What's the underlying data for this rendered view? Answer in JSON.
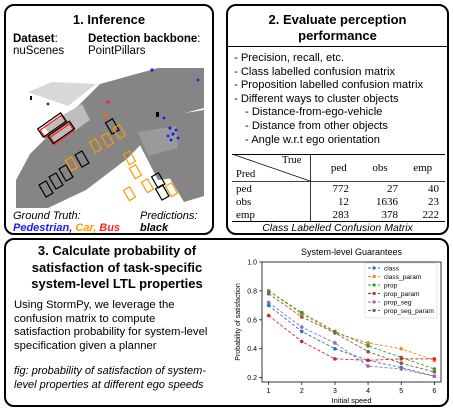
{
  "panel1": {
    "title": "1. Inference",
    "dataset_label": "Dataset",
    "dataset_colon": ":",
    "dataset_value": "nuScenes",
    "backbone_label": "Detection backbone",
    "backbone_colon": ":",
    "backbone_value": "PointPillars",
    "gt_label": "Ground Truth:",
    "gt_pedestrian": "Pedestrian",
    "gt_comma1": ", ",
    "gt_car": "Car",
    "gt_comma2": ", ",
    "gt_bus": "Bus",
    "pred_label": "Predictions:",
    "pred_value": "black",
    "colors": {
      "pedestrian": "#1a1aff",
      "car": "#ff9900",
      "bus": "#ff2222",
      "road": "#858585"
    }
  },
  "panel2": {
    "title_line1": "2. Evaluate perception",
    "title_line2": "performance",
    "items": [
      "- Precision, recall, etc.",
      "- Class labelled confusion matrix",
      "- Proposition labelled confusion matrix",
      "- Different ways to cluster objects",
      "- Distance-from-ego-vehicle",
      "- Distance from other objects",
      "- Angle w.r.t ego orientation"
    ],
    "matrix": {
      "header_true": "True",
      "header_pred": "Pred",
      "columns": [
        "ped",
        "obs",
        "emp"
      ],
      "rows": [
        {
          "label": "ped",
          "values": [
            "772",
            "27",
            "40"
          ]
        },
        {
          "label": "obs",
          "values": [
            "12",
            "1636",
            "23"
          ]
        },
        {
          "label": "emp",
          "values": [
            "283",
            "378",
            "222"
          ]
        }
      ],
      "caption": "Class Labelled Confusion Matrix"
    }
  },
  "panel3": {
    "title_line1": "3. Calculate probability of",
    "title_line2": "satisfaction of task-specific",
    "title_line3": "system-level LTL properties",
    "body_line1": "Using StormPy, we leverage the",
    "body_line2": "confusion matrix to compute",
    "body_line3": "satisfaction probability for system-level",
    "body_line4": "specification given a planner",
    "fig_line1": "fig: probability of satisfaction of system-",
    "fig_line2": "level properties at different ego speeds"
  },
  "chart_data": {
    "type": "line",
    "title": "System-level Guarantees",
    "xlabel": "Initial speed",
    "ylabel": "Probability of satisfaction",
    "xlim": [
      0.8,
      6.2
    ],
    "ylim": [
      0.17,
      1.0
    ],
    "x_ticks": [
      "1",
      "2",
      "3",
      "4",
      "5",
      "6"
    ],
    "y_ticks": [
      "0.2",
      "0.4",
      "0.6",
      "0.8",
      "1.0"
    ],
    "x": [
      1,
      2,
      3,
      4,
      5,
      6
    ],
    "grid": false,
    "legend_position": "top-right",
    "series": [
      {
        "name": "class",
        "color": "#1f77b4",
        "values": [
          0.7,
          0.52,
          0.4,
          0.32,
          0.27,
          0.21
        ]
      },
      {
        "name": "class_param",
        "color": "#ff7f0e",
        "values": [
          0.8,
          0.64,
          0.51,
          0.44,
          0.4,
          0.32
        ]
      },
      {
        "name": "prop",
        "color": "#2ca02c",
        "values": [
          0.8,
          0.65,
          0.52,
          0.42,
          0.34,
          0.26
        ]
      },
      {
        "name": "prop_param",
        "color": "#d62728",
        "values": [
          0.63,
          0.45,
          0.33,
          0.32,
          0.33,
          0.33
        ]
      },
      {
        "name": "prop_seg",
        "color": "#9467bd",
        "values": [
          0.72,
          0.55,
          0.44,
          0.28,
          0.26,
          0.21
        ]
      },
      {
        "name": "prop_seg_param",
        "color": "#8c564b",
        "values": [
          0.78,
          0.62,
          0.51,
          0.38,
          0.3,
          0.24
        ]
      }
    ]
  }
}
